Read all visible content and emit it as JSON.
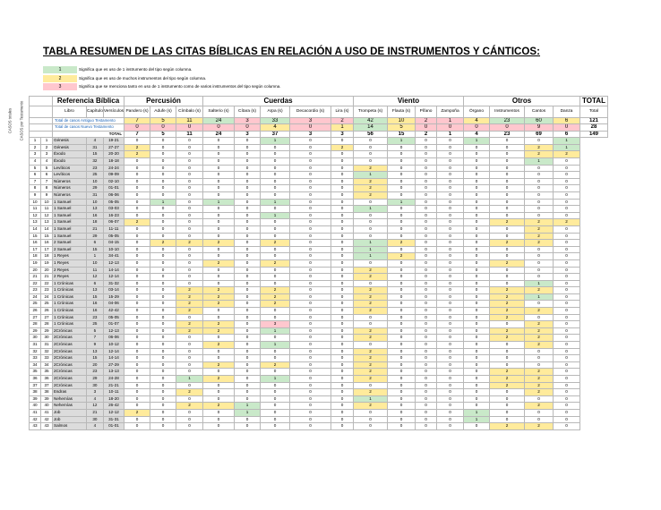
{
  "title": "TABLA RESUMEN DE LAS CITAS BÍBLICAS EN RELACIÓN A USO DE INSTRUMENTOS Y CÁNTICOS:",
  "legend": [
    {
      "value": "1",
      "text": "Significa que es uso de 1 instrumento del tipo según columna.",
      "color": "#c9e9c9"
    },
    {
      "value": "2",
      "text": "Significa que es uso de muchos instrumentos del tipo según columna.",
      "color": "#ffeb9c"
    },
    {
      "value": "3",
      "text": "Significa que se menciona tanto en uso de 1 instrumento como de varios instrumentos del tipo según columna.",
      "color": "#ffc7ce"
    }
  ],
  "side_labels": [
    "CASOS totales",
    "CASOS por Testamento"
  ],
  "sections": {
    "ref": "Referencia Bíblica",
    "perc": "Percusión",
    "cuer": "Cuerdas",
    "vien": "Viento",
    "otros": "Otros",
    "total": "TOTAL"
  },
  "subheaders": [
    "Libro",
    "Capítulo",
    "Versículos",
    "Pandero (s)",
    "Adufe (s)",
    "Címbalo (s)",
    "Salterio (s)",
    "Cítara (s)",
    "Arpa (s)",
    "Decacordio (s)",
    "Lira (s)",
    "Trompeta (s)",
    "Flauta (s)",
    "Pífano",
    "Zampoña",
    "Órgano",
    "Instrumentos",
    "Cantos",
    "Danza",
    "Total"
  ],
  "totals": [
    {
      "label": "Total de casos Antiguo Testamento",
      "values": [
        "7",
        "5",
        "11",
        "24",
        "3",
        "33",
        "3",
        "2",
        "42",
        "10",
        "2",
        "1",
        "4",
        "23",
        "60",
        "6"
      ],
      "colors": [
        "y",
        "y",
        "y",
        "g",
        "r",
        "g",
        "r",
        "r",
        "g",
        "y",
        "r",
        "r",
        "y",
        "g",
        "g",
        "y"
      ],
      "sum": "121"
    },
    {
      "label": "Total de casos Nuevo Testamento",
      "values": [
        "0",
        "0",
        "0",
        "0",
        "0",
        "4",
        "0",
        "1",
        "14",
        "5",
        "0",
        "0",
        "0",
        "0",
        "9",
        "0"
      ],
      "colors": [
        "r",
        "r",
        "r",
        "r",
        "r",
        "y",
        "r",
        "y",
        "g",
        "y",
        "r",
        "r",
        "r",
        "r",
        "r",
        "r"
      ],
      "sum": "28"
    },
    {
      "label": "TOTAL",
      "values": [
        "7",
        "5",
        "11",
        "24",
        "3",
        "37",
        "3",
        "3",
        "56",
        "15",
        "2",
        "1",
        "4",
        "23",
        "69",
        "6"
      ],
      "colors": [
        "y",
        "y",
        "y",
        "g",
        "y",
        "g",
        "y",
        "y",
        "g",
        "y",
        "y",
        "y",
        "y",
        "g",
        "g",
        "y"
      ],
      "sum": "149"
    }
  ],
  "rows": [
    {
      "i": "1",
      "n": "1",
      "book": "Génesis",
      "ch": "4",
      "vs": "19-21",
      "c": [
        "0",
        "0",
        "0",
        "0",
        "0",
        "1",
        "0",
        "0",
        "0",
        "1",
        "0",
        "0",
        "1",
        "0",
        "0",
        "1"
      ]
    },
    {
      "i": "2",
      "n": "2",
      "book": "Génesis",
      "ch": "31",
      "vs": "27-27",
      "c": [
        "2",
        "0",
        "0",
        "0",
        "0",
        "0",
        "0",
        "2",
        "0",
        "0",
        "0",
        "0",
        "0",
        "0",
        "2",
        "1"
      ]
    },
    {
      "i": "3",
      "n": "3",
      "book": "Éxodo",
      "ch": "15",
      "vs": "20-20",
      "c": [
        "2",
        "0",
        "0",
        "0",
        "0",
        "0",
        "0",
        "0",
        "0",
        "0",
        "0",
        "0",
        "0",
        "0",
        "2",
        "2"
      ]
    },
    {
      "i": "4",
      "n": "4",
      "book": "Éxodo",
      "ch": "32",
      "vs": "18-18",
      "c": [
        "0",
        "0",
        "0",
        "0",
        "0",
        "0",
        "0",
        "0",
        "0",
        "0",
        "0",
        "0",
        "0",
        "0",
        "1",
        "0"
      ]
    },
    {
      "i": "5",
      "n": "5",
      "book": "Levíticos",
      "ch": "23",
      "vs": "24-24",
      "c": [
        "0",
        "0",
        "0",
        "0",
        "0",
        "0",
        "0",
        "0",
        "2",
        "0",
        "0",
        "0",
        "0",
        "0",
        "0",
        "0"
      ]
    },
    {
      "i": "6",
      "n": "6",
      "book": "Levíticos",
      "ch": "25",
      "vs": "09-09",
      "c": [
        "0",
        "0",
        "0",
        "0",
        "0",
        "0",
        "0",
        "0",
        "1",
        "0",
        "0",
        "0",
        "0",
        "0",
        "0",
        "0"
      ]
    },
    {
      "i": "7",
      "n": "7",
      "book": "Números",
      "ch": "10",
      "vs": "02-10",
      "c": [
        "0",
        "0",
        "0",
        "0",
        "0",
        "0",
        "0",
        "0",
        "2",
        "0",
        "0",
        "0",
        "0",
        "0",
        "0",
        "0"
      ]
    },
    {
      "i": "8",
      "n": "8",
      "book": "Números",
      "ch": "29",
      "vs": "01-01",
      "c": [
        "0",
        "0",
        "0",
        "0",
        "0",
        "0",
        "0",
        "0",
        "2",
        "0",
        "0",
        "0",
        "0",
        "0",
        "0",
        "0"
      ]
    },
    {
      "i": "9",
      "n": "9",
      "book": "Números",
      "ch": "31",
      "vs": "06-06",
      "c": [
        "0",
        "0",
        "0",
        "0",
        "0",
        "0",
        "0",
        "0",
        "2",
        "0",
        "0",
        "0",
        "0",
        "0",
        "0",
        "0"
      ]
    },
    {
      "i": "10",
      "n": "10",
      "book": "1 Samuel",
      "ch": "10",
      "vs": "05-05",
      "c": [
        "0",
        "1",
        "0",
        "1",
        "0",
        "1",
        "0",
        "0",
        "0",
        "1",
        "0",
        "0",
        "0",
        "0",
        "0",
        "0"
      ]
    },
    {
      "i": "11",
      "n": "11",
      "book": "1 Samuel",
      "ch": "13",
      "vs": "03-03",
      "c": [
        "0",
        "0",
        "0",
        "0",
        "0",
        "0",
        "0",
        "0",
        "1",
        "0",
        "0",
        "0",
        "0",
        "0",
        "0",
        "0"
      ]
    },
    {
      "i": "12",
      "n": "12",
      "book": "1 Samuel",
      "ch": "16",
      "vs": "16-23",
      "c": [
        "0",
        "0",
        "0",
        "0",
        "0",
        "1",
        "0",
        "0",
        "0",
        "0",
        "0",
        "0",
        "0",
        "0",
        "0",
        "0"
      ]
    },
    {
      "i": "13",
      "n": "13",
      "book": "1 Samuel",
      "ch": "18",
      "vs": "06-07",
      "c": [
        "2",
        "0",
        "0",
        "0",
        "0",
        "0",
        "0",
        "0",
        "0",
        "0",
        "0",
        "0",
        "0",
        "2",
        "2",
        "2"
      ]
    },
    {
      "i": "14",
      "n": "14",
      "book": "1 Samuel",
      "ch": "21",
      "vs": "11-11",
      "c": [
        "0",
        "0",
        "0",
        "0",
        "0",
        "0",
        "0",
        "0",
        "0",
        "0",
        "0",
        "0",
        "0",
        "0",
        "2",
        "0"
      ]
    },
    {
      "i": "15",
      "n": "15",
      "book": "1 Samuel",
      "ch": "29",
      "vs": "05-05",
      "c": [
        "0",
        "0",
        "0",
        "0",
        "0",
        "0",
        "0",
        "0",
        "0",
        "0",
        "0",
        "0",
        "0",
        "0",
        "2",
        "0"
      ]
    },
    {
      "i": "16",
      "n": "16",
      "book": "2 Samuel",
      "ch": "6",
      "vs": "04-15",
      "c": [
        "0",
        "2",
        "2",
        "2",
        "0",
        "2",
        "0",
        "0",
        "1",
        "2",
        "0",
        "0",
        "0",
        "2",
        "2",
        "0"
      ]
    },
    {
      "i": "17",
      "n": "17",
      "book": "2 Samuel",
      "ch": "15",
      "vs": "10-10",
      "c": [
        "0",
        "0",
        "0",
        "0",
        "0",
        "0",
        "0",
        "0",
        "1",
        "0",
        "0",
        "0",
        "0",
        "0",
        "0",
        "0"
      ]
    },
    {
      "i": "18",
      "n": "18",
      "book": "1 Reyes",
      "ch": "1",
      "vs": "34-41",
      "c": [
        "0",
        "0",
        "0",
        "0",
        "0",
        "0",
        "0",
        "0",
        "1",
        "2",
        "0",
        "0",
        "0",
        "0",
        "0",
        "0"
      ]
    },
    {
      "i": "19",
      "n": "19",
      "book": "1 Reyes",
      "ch": "10",
      "vs": "12-13",
      "c": [
        "0",
        "0",
        "0",
        "2",
        "0",
        "2",
        "0",
        "0",
        "0",
        "0",
        "0",
        "0",
        "0",
        "2",
        "0",
        "0"
      ]
    },
    {
      "i": "20",
      "n": "20",
      "book": "2 Reyes",
      "ch": "11",
      "vs": "14-14",
      "c": [
        "0",
        "0",
        "0",
        "0",
        "0",
        "0",
        "0",
        "0",
        "2",
        "0",
        "0",
        "0",
        "0",
        "0",
        "0",
        "0"
      ]
    },
    {
      "i": "21",
      "n": "21",
      "book": "2 Reyes",
      "ch": "12",
      "vs": "12-14",
      "c": [
        "0",
        "0",
        "0",
        "0",
        "0",
        "0",
        "0",
        "0",
        "2",
        "0",
        "0",
        "0",
        "0",
        "0",
        "0",
        "0"
      ]
    },
    {
      "i": "22",
      "n": "22",
      "book": "1 Crónicas",
      "ch": "6",
      "vs": "31-32",
      "c": [
        "0",
        "0",
        "0",
        "0",
        "0",
        "0",
        "0",
        "0",
        "0",
        "0",
        "0",
        "0",
        "0",
        "0",
        "1",
        "0"
      ]
    },
    {
      "i": "23",
      "n": "23",
      "book": "1 Crónicas",
      "ch": "13",
      "vs": "03-14",
      "c": [
        "0",
        "0",
        "2",
        "2",
        "0",
        "2",
        "0",
        "0",
        "2",
        "0",
        "0",
        "0",
        "0",
        "2",
        "2",
        "0"
      ]
    },
    {
      "i": "24",
      "n": "24",
      "book": "1 Crónicas",
      "ch": "15",
      "vs": "15-29",
      "c": [
        "0",
        "0",
        "2",
        "2",
        "0",
        "2",
        "0",
        "0",
        "2",
        "0",
        "0",
        "0",
        "0",
        "2",
        "1",
        "0"
      ]
    },
    {
      "i": "25",
      "n": "25",
      "book": "1 Crónicas",
      "ch": "16",
      "vs": "04-06",
      "c": [
        "0",
        "0",
        "2",
        "2",
        "0",
        "2",
        "0",
        "0",
        "2",
        "0",
        "0",
        "0",
        "0",
        "2",
        "0",
        "0"
      ]
    },
    {
      "i": "26",
      "n": "26",
      "book": "1 Crónicas",
      "ch": "16",
      "vs": "42-42",
      "c": [
        "0",
        "0",
        "2",
        "0",
        "0",
        "0",
        "0",
        "0",
        "2",
        "0",
        "0",
        "0",
        "0",
        "2",
        "2",
        "0"
      ]
    },
    {
      "i": "27",
      "n": "27",
      "book": "1 Crónicas",
      "ch": "23",
      "vs": "05-05",
      "c": [
        "0",
        "0",
        "0",
        "0",
        "0",
        "0",
        "0",
        "0",
        "0",
        "0",
        "0",
        "0",
        "0",
        "2",
        "0",
        "0"
      ]
    },
    {
      "i": "28",
      "n": "28",
      "book": "1 Crónicas",
      "ch": "25",
      "vs": "01-07",
      "c": [
        "0",
        "0",
        "2",
        "2",
        "0",
        "3",
        "0",
        "0",
        "0",
        "0",
        "0",
        "0",
        "0",
        "0",
        "2",
        "0"
      ]
    },
    {
      "i": "29",
      "n": "29",
      "book": "2Crónicas",
      "ch": "5",
      "vs": "12-13",
      "c": [
        "0",
        "0",
        "2",
        "2",
        "0",
        "1",
        "0",
        "0",
        "2",
        "0",
        "0",
        "0",
        "0",
        "2",
        "2",
        "0"
      ]
    },
    {
      "i": "30",
      "n": "30",
      "book": "2Crónicas",
      "ch": "7",
      "vs": "06-06",
      "c": [
        "0",
        "0",
        "0",
        "0",
        "0",
        "0",
        "0",
        "0",
        "2",
        "0",
        "0",
        "0",
        "0",
        "2",
        "2",
        "0"
      ]
    },
    {
      "i": "31",
      "n": "31",
      "book": "2Crónicas",
      "ch": "9",
      "vs": "10-12",
      "c": [
        "0",
        "0",
        "0",
        "2",
        "0",
        "1",
        "0",
        "0",
        "0",
        "0",
        "0",
        "0",
        "0",
        "0",
        "2",
        "0"
      ]
    },
    {
      "i": "32",
      "n": "32",
      "book": "2Crónicas",
      "ch": "13",
      "vs": "12-14",
      "c": [
        "0",
        "0",
        "0",
        "0",
        "0",
        "0",
        "0",
        "0",
        "2",
        "0",
        "0",
        "0",
        "0",
        "0",
        "0",
        "0"
      ]
    },
    {
      "i": "33",
      "n": "33",
      "book": "2Crónicas",
      "ch": "15",
      "vs": "14-14",
      "c": [
        "0",
        "0",
        "0",
        "0",
        "0",
        "0",
        "0",
        "0",
        "2",
        "0",
        "0",
        "0",
        "0",
        "0",
        "0",
        "0"
      ]
    },
    {
      "i": "34",
      "n": "34",
      "book": "2Crónicas",
      "ch": "20",
      "vs": "27-29",
      "c": [
        "0",
        "0",
        "0",
        "2",
        "0",
        "2",
        "0",
        "0",
        "2",
        "0",
        "0",
        "0",
        "0",
        "0",
        "0",
        "0"
      ]
    },
    {
      "i": "35",
      "n": "35",
      "book": "2Crónicas",
      "ch": "23",
      "vs": "13-13",
      "c": [
        "0",
        "0",
        "0",
        "0",
        "0",
        "0",
        "0",
        "0",
        "2",
        "0",
        "0",
        "0",
        "0",
        "2",
        "2",
        "0"
      ]
    },
    {
      "i": "36",
      "n": "36",
      "book": "2Crónicas",
      "ch": "29",
      "vs": "24-28",
      "c": [
        "0",
        "0",
        "1",
        "2",
        "0",
        "1",
        "0",
        "0",
        "2",
        "0",
        "0",
        "0",
        "0",
        "2",
        "2",
        "0"
      ]
    },
    {
      "i": "37",
      "n": "37",
      "book": "2Crónicas",
      "ch": "30",
      "vs": "21-21",
      "c": [
        "0",
        "0",
        "0",
        "0",
        "0",
        "0",
        "0",
        "0",
        "0",
        "0",
        "0",
        "0",
        "0",
        "2",
        "2",
        "0"
      ]
    },
    {
      "i": "38",
      "n": "38",
      "book": "Esdras",
      "ch": "3",
      "vs": "10-11",
      "c": [
        "0",
        "0",
        "2",
        "0",
        "0",
        "0",
        "0",
        "0",
        "2",
        "0",
        "0",
        "0",
        "0",
        "0",
        "2",
        "0"
      ]
    },
    {
      "i": "39",
      "n": "39",
      "book": "Nehemías",
      "ch": "4",
      "vs": "18-20",
      "c": [
        "0",
        "0",
        "0",
        "0",
        "0",
        "0",
        "0",
        "0",
        "1",
        "0",
        "0",
        "0",
        "0",
        "0",
        "0",
        "0"
      ]
    },
    {
      "i": "40",
      "n": "40",
      "book": "Nehemías",
      "ch": "12",
      "vs": "26-42",
      "c": [
        "0",
        "0",
        "2",
        "2",
        "1",
        "0",
        "0",
        "0",
        "2",
        "0",
        "0",
        "0",
        "0",
        "0",
        "2",
        "0"
      ]
    },
    {
      "i": "41",
      "n": "41",
      "book": "Job",
      "ch": "21",
      "vs": "12-12",
      "c": [
        "2",
        "0",
        "0",
        "0",
        "1",
        "0",
        "0",
        "0",
        "0",
        "0",
        "0",
        "0",
        "1",
        "0",
        "0",
        "0"
      ]
    },
    {
      "i": "42",
      "n": "42",
      "book": "Job",
      "ch": "30",
      "vs": "31-31",
      "c": [
        "0",
        "0",
        "0",
        "0",
        "0",
        "0",
        "0",
        "0",
        "0",
        "0",
        "0",
        "0",
        "1",
        "0",
        "0",
        "0"
      ]
    },
    {
      "i": "43",
      "n": "43",
      "book": "Salmos",
      "ch": "4",
      "vs": "01-01",
      "c": [
        "0",
        "0",
        "0",
        "0",
        "0",
        "0",
        "0",
        "0",
        "0",
        "0",
        "0",
        "0",
        "0",
        "2",
        "2",
        "0"
      ]
    }
  ]
}
